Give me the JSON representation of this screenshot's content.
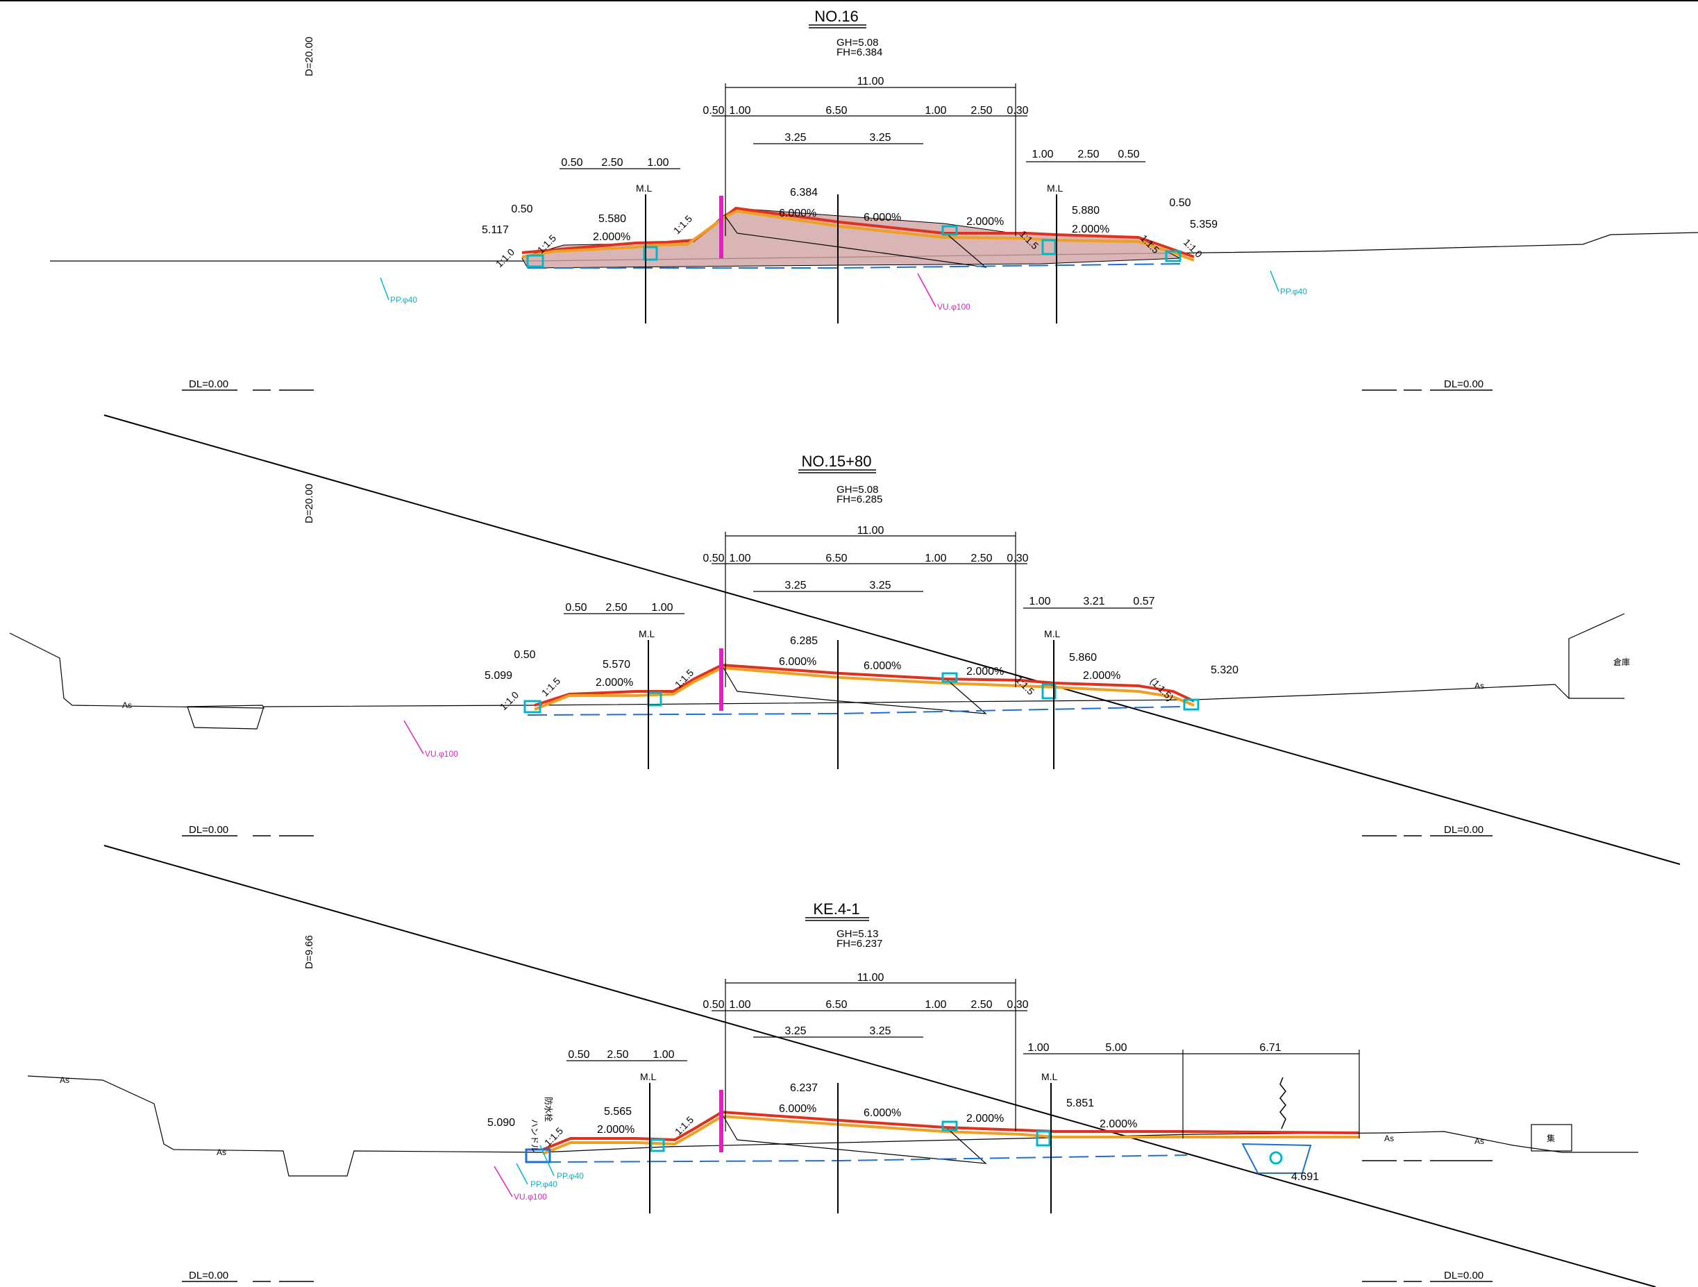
{
  "colors": {
    "pavement_red": "#e0301e",
    "base_orange": "#f0a020",
    "fill_mauve": "#cfa3a3",
    "drain_cyan": "#00b7c8",
    "pipe_blue": "#1e6fd0",
    "magenta": "#e020c0",
    "line_black": "#000000"
  },
  "sections": [
    {
      "title": "NO.16",
      "gh": "GH=5.08",
      "fh": "FH=6.384",
      "depth_label": "D=20.00",
      "datum_left": "DL=0.00",
      "datum_right": "DL=0.00",
      "widths": {
        "total": "11.00",
        "left_sh1": "0.50",
        "left_sh2": "1.00",
        "carriage": "6.50",
        "right_sh1": "1.00",
        "right_sh2": "2.50",
        "right_sh3": "0.30",
        "half_l": "3.25",
        "half_r": "3.25",
        "ll_a": "0.50",
        "ll_b": "2.50",
        "ll_c": "1.00",
        "ll_d": "0.50",
        "rr_a": "1.00",
        "rr_b": "2.50",
        "rr_c": "0.50",
        "rr_d": "0.50"
      },
      "elev": {
        "crown": "6.384",
        "left_side": "5.580",
        "left_edge": "5.117",
        "right_side": "5.880",
        "right_edge": "5.359"
      },
      "slopes": {
        "left_outer": "1:1.0",
        "left_inner": "1:1.5",
        "left_road": "1:1.5",
        "right_road": "1:1.5",
        "right_inner": "1:1.5",
        "right_outer": "1:1.0"
      },
      "grades": {
        "left_sidewalk": "2.000%",
        "left_lane": "6.000%",
        "right_lane": "6.000%",
        "right_shoulder": "2.000%",
        "right_sidewalk": "2.000%"
      },
      "ml_label": "M.L",
      "pipes": [
        "PP.φ40",
        "VU.φ100",
        "PP.φ40"
      ]
    },
    {
      "title": "NO.15+80",
      "gh": "GH=5.08",
      "fh": "FH=6.285",
      "depth_label": "D=20.00",
      "datum_left": "DL=0.00",
      "datum_right": "DL=0.00",
      "widths": {
        "total": "11.00",
        "left_sh1": "0.50",
        "left_sh2": "1.00",
        "carriage": "6.50",
        "right_sh1": "1.00",
        "right_sh2": "2.50",
        "right_sh3": "0.30",
        "half_l": "3.25",
        "half_r": "3.25",
        "ll_a": "0.50",
        "ll_b": "2.50",
        "ll_c": "1.00",
        "ll_d": "0.50",
        "rr_a": "1.00",
        "rr_b": "3.21",
        "rr_c": "0.57"
      },
      "elev": {
        "crown": "6.285",
        "left_side": "5.570",
        "left_edge": "5.099",
        "right_side": "5.860",
        "right_edge": "5.320"
      },
      "slopes": {
        "left_outer": "1:1.0",
        "left_inner": "1:1.5",
        "left_road": "1:1.5",
        "right_road": "1:1.5",
        "right_inner": "(1:1.5)"
      },
      "grades": {
        "left_sidewalk": "2.000%",
        "left_lane": "6.000%",
        "right_lane": "6.000%",
        "right_shoulder": "2.000%",
        "right_sidewalk": "2.000%"
      },
      "ml_label": "M.L",
      "pipes": [
        "VU.φ100"
      ],
      "ground_labels": [
        "As",
        "As",
        "倉庫"
      ]
    },
    {
      "title": "KE.4-1",
      "gh": "GH=5.13",
      "fh": "FH=6.237",
      "depth_label": "D=9.66",
      "datum_left": "DL=0.00",
      "datum_right": "DL=0.00",
      "widths": {
        "total": "11.00",
        "left_sh1": "0.50",
        "left_sh2": "1.00",
        "carriage": "6.50",
        "right_sh1": "1.00",
        "right_sh2": "2.50",
        "right_sh3": "0.30",
        "half_l": "3.25",
        "half_r": "3.25",
        "ll_a": "0.50",
        "ll_b": "2.50",
        "ll_c": "1.00",
        "rr_a": "1.00",
        "rr_b": "5.00",
        "rr_c": "6.71"
      },
      "elev": {
        "crown": "6.237",
        "left_side": "5.565",
        "left_edge": "5.090",
        "right_side": "5.851",
        "right_bottom": "4.691"
      },
      "slopes": {
        "left_inner": "1:1.5",
        "left_road": "1:1.5"
      },
      "grades": {
        "left_sidewalk": "2.000%",
        "left_lane": "6.000%",
        "right_lane": "6.000%",
        "right_shoulder": "2.000%",
        "right_sidewalk": "2.000%"
      },
      "ml_label": "M.L",
      "pipes": [
        "PP.φ40",
        "PP.φ40",
        "VU.φ100"
      ],
      "ground_labels": [
        "As",
        "As",
        "As",
        "As",
        "集"
      ],
      "side_labels": [
        "ハンドル",
        "防水栓"
      ]
    }
  ]
}
